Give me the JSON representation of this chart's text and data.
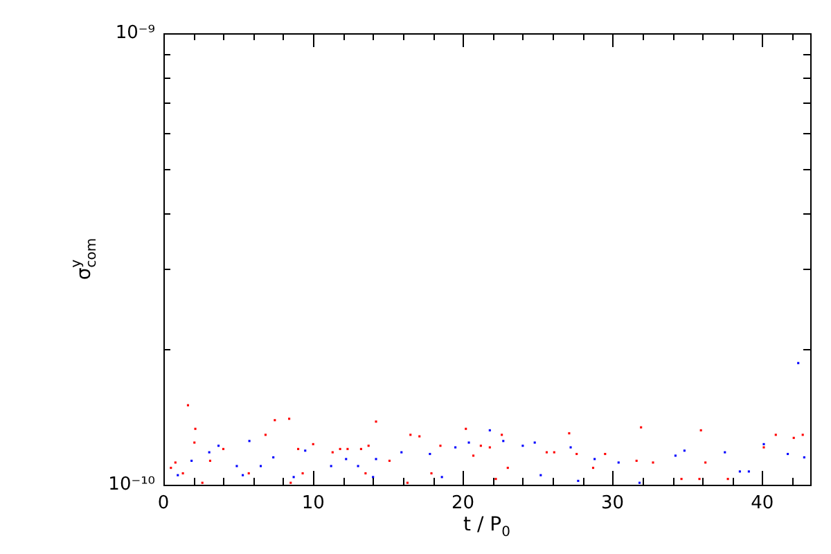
{
  "chart_data": {
    "type": "scatter",
    "xlabel": "t / P$_{0}$",
    "ylabel": "σ$^{y}$$_{com}$",
    "log": "y",
    "grid": false,
    "legend": false,
    "marker": "square",
    "xlim": [
      0,
      43.2
    ],
    "ylim": [
      1e-10,
      1e-09
    ],
    "xticks": [
      0,
      {
        "value": 2,
        "label": null
      },
      {
        "value": 4,
        "label": null
      },
      {
        "value": 6,
        "label": null
      },
      {
        "value": 8,
        "label": null
      },
      10,
      {
        "value": 12,
        "label": null
      },
      {
        "value": 14,
        "label": null
      },
      {
        "value": 16,
        "label": null
      },
      {
        "value": 18,
        "label": null
      },
      20,
      {
        "value": 22,
        "label": null
      },
      {
        "value": 24,
        "label": null
      },
      {
        "value": 26,
        "label": null
      },
      {
        "value": 28,
        "label": null
      },
      30,
      {
        "value": 32,
        "label": null
      },
      {
        "value": 34,
        "label": null
      },
      {
        "value": 36,
        "label": null
      },
      {
        "value": 38,
        "label": null
      },
      40,
      {
        "value": 42,
        "label": null
      }
    ],
    "yticks": [
      {
        "value": 1e-10,
        "label": "10⁻¹⁰"
      },
      {
        "value": 2e-10,
        "label": null
      },
      {
        "value": 3e-10,
        "label": null
      },
      {
        "value": 4e-10,
        "label": null
      },
      {
        "value": 5e-10,
        "label": null
      },
      {
        "value": 6e-10,
        "label": null
      },
      {
        "value": 7e-10,
        "label": null
      },
      {
        "value": 8e-10,
        "label": null
      },
      {
        "value": 9e-10,
        "label": null
      },
      {
        "value": 1e-09,
        "label": "10⁻⁹"
      }
    ],
    "series": [
      {
        "color": "#ff0000",
        "x": [
          1.64,
          2.13,
          2.07,
          7.44,
          8.4,
          6.82,
          14.2,
          10.0,
          16.5,
          17.1,
          20.2,
          4.0,
          3.12,
          0.8,
          0.5,
          9.0,
          11.3,
          11.8,
          12.3,
          13.2,
          13.7,
          15.1,
          18.5,
          20.7,
          1.3,
          5.7,
          9.3,
          13.5,
          17.9,
          2.6,
          8.5,
          16.3,
          31.9,
          35.9,
          27.1,
          22.6,
          40.9,
          42.7,
          21.2,
          21.8,
          42.1,
          40.1,
          29.5,
          25.6,
          26.1,
          27.6,
          31.6,
          32.7,
          36.2,
          23.0,
          28.7,
          34.6,
          35.8,
          37.7,
          22.2
        ],
        "values": [
          1.5e-10,
          1.33e-10,
          1.24e-10,
          1.39e-10,
          1.4e-10,
          1.29e-10,
          1.38e-10,
          1.23e-10,
          1.29e-10,
          1.28e-10,
          1.33e-10,
          1.2e-10,
          1.13e-10,
          1.12e-10,
          1.09e-10,
          1.2e-10,
          1.18e-10,
          1.2e-10,
          1.2e-10,
          1.2e-10,
          1.22e-10,
          1.13e-10,
          1.22e-10,
          1.16e-10,
          1.06e-10,
          1.06e-10,
          1.06e-10,
          1.06e-10,
          1.06e-10,
          1.01e-10,
          1.01e-10,
          1.01e-10,
          1.34e-10,
          1.32e-10,
          1.3e-10,
          1.29e-10,
          1.29e-10,
          1.29e-10,
          1.22e-10,
          1.21e-10,
          1.27e-10,
          1.21e-10,
          1.17e-10,
          1.18e-10,
          1.18e-10,
          1.17e-10,
          1.13e-10,
          1.12e-10,
          1.12e-10,
          1.09e-10,
          1.09e-10,
          1.03e-10,
          1.03e-10,
          1.03e-10,
          1.03e-10
        ]
      },
      {
        "color": "#0000ff",
        "x": [
          5.74,
          7.34,
          3.06,
          3.68,
          9.47,
          1.88,
          15.9,
          14.2,
          20.4,
          19.5,
          17.8,
          12.2,
          4.9,
          6.5,
          11.2,
          13.0,
          0.96,
          5.3,
          8.7,
          14.0,
          18.6,
          42.4,
          21.8,
          22.7,
          24.8,
          24.0,
          27.2,
          40.1,
          37.5,
          34.8,
          34.2,
          42.8,
          41.7,
          28.8,
          30.4,
          38.5,
          39.1,
          25.2,
          27.7,
          31.8
        ],
        "values": [
          1.25e-10,
          1.15e-10,
          1.18e-10,
          1.22e-10,
          1.19e-10,
          1.13e-10,
          1.18e-10,
          1.14e-10,
          1.24e-10,
          1.21e-10,
          1.17e-10,
          1.14e-10,
          1.1e-10,
          1.1e-10,
          1.1e-10,
          1.1e-10,
          1.05e-10,
          1.05e-10,
          1.04e-10,
          1.04e-10,
          1.04e-10,
          1.86e-10,
          1.32e-10,
          1.25e-10,
          1.24e-10,
          1.22e-10,
          1.21e-10,
          1.23e-10,
          1.18e-10,
          1.19e-10,
          1.16e-10,
          1.15e-10,
          1.17e-10,
          1.14e-10,
          1.12e-10,
          1.07e-10,
          1.07e-10,
          1.05e-10,
          1.02e-10,
          1.01e-10
        ]
      }
    ]
  }
}
